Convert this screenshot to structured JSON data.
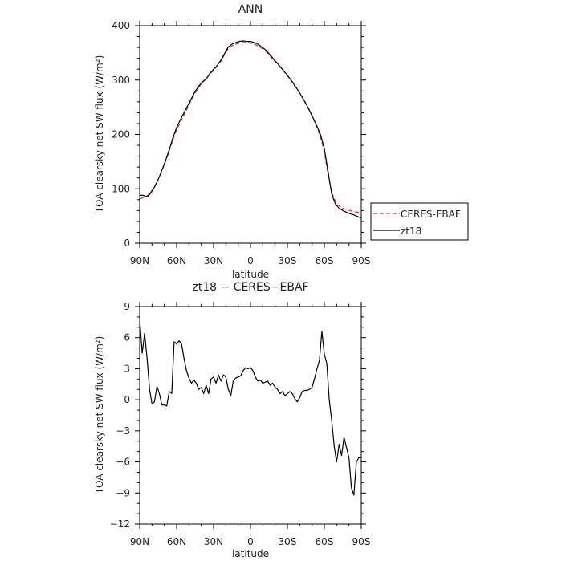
{
  "chart_data": [
    {
      "type": "line",
      "title": "ANN",
      "xlabel": "latitude",
      "ylabel": "TOA clearsky net SW flux (W/m²)",
      "x_ticks": [
        "90N",
        "60N",
        "30N",
        "0",
        "30S",
        "60S",
        "90S"
      ],
      "y_ticks": [
        "0",
        "100",
        "200",
        "300",
        "400"
      ],
      "xlim": [
        90,
        -90
      ],
      "ylim": [
        0,
        400
      ],
      "legend": "right",
      "colors": {
        "CERES-EBAF": "#d62728",
        "zt18": "#000000"
      },
      "x": [
        90,
        87,
        84,
        81,
        78,
        75,
        72,
        69,
        66,
        63,
        60,
        57,
        54,
        51,
        48,
        45,
        42,
        39,
        36,
        33,
        30,
        27,
        24,
        21,
        18,
        15,
        12,
        9,
        6,
        3,
        0,
        -3,
        -6,
        -9,
        -12,
        -15,
        -18,
        -21,
        -24,
        -27,
        -30,
        -33,
        -36,
        -39,
        -42,
        -45,
        -48,
        -51,
        -54,
        -57,
        -60,
        -63,
        -66,
        -69,
        -72,
        -75,
        -78,
        -81,
        -84,
        -87,
        -90
      ],
      "series": [
        {
          "name": "CERES-EBAF",
          "style": "dashed",
          "values": [
            81,
            84,
            87,
            94,
            104,
            117,
            133,
            150,
            170,
            190,
            208,
            222,
            236,
            250,
            263,
            276,
            287,
            296,
            302,
            311,
            318,
            326,
            335,
            347,
            358,
            363,
            366,
            368,
            369,
            369,
            368,
            366,
            363,
            359,
            354,
            347,
            339,
            332,
            324,
            316,
            308,
            299,
            289,
            279,
            268,
            256,
            243,
            229,
            213,
            194,
            168,
            127,
            93,
            77,
            68,
            64,
            62,
            60,
            58,
            57,
            56
          ]
        },
        {
          "name": "zt18",
          "style": "solid",
          "values": [
            88,
            88,
            85,
            92,
            103,
            117,
            134,
            152,
            172,
            194,
            213,
            227,
            240,
            253,
            266,
            279,
            289,
            297,
            302,
            312,
            320,
            327,
            337,
            349,
            361,
            366,
            369,
            371,
            372,
            371,
            371,
            369,
            366,
            361,
            356,
            349,
            341,
            333,
            325,
            317,
            309,
            300,
            290,
            280,
            269,
            257,
            244,
            230,
            215,
            199,
            174,
            132,
            90,
            72,
            64,
            60,
            57,
            54,
            52,
            49,
            46
          ]
        }
      ]
    },
    {
      "type": "line",
      "title": "zt18 − CERES−EBAF",
      "xlabel": "latitude",
      "ylabel": "TOA clearsky net SW flux (W/m²)",
      "x_ticks": [
        "90N",
        "60N",
        "30N",
        "0",
        "30S",
        "60S",
        "90S"
      ],
      "y_ticks": [
        "−12",
        "−9",
        "−6",
        "−3",
        "0",
        "3",
        "6",
        "9"
      ],
      "xlim": [
        90,
        -90
      ],
      "ylim": [
        -12,
        9
      ],
      "colors": {
        "zt18 - CERES-EBAF": "#000000"
      },
      "x": [
        90,
        88,
        86,
        84,
        82,
        80,
        78,
        76,
        74,
        72,
        70,
        68,
        66,
        64,
        62,
        60,
        58,
        56,
        54,
        52,
        50,
        48,
        46,
        44,
        42,
        40,
        38,
        36,
        34,
        32,
        30,
        28,
        26,
        24,
        22,
        20,
        18,
        16,
        14,
        12,
        10,
        8,
        6,
        4,
        2,
        0,
        -2,
        -4,
        -6,
        -8,
        -10,
        -12,
        -14,
        -16,
        -18,
        -20,
        -22,
        -24,
        -26,
        -28,
        -30,
        -32,
        -34,
        -36,
        -38,
        -40,
        -42,
        -44,
        -46,
        -48,
        -50,
        -52,
        -54,
        -56,
        -58,
        -60,
        -62,
        -64,
        -66,
        -68,
        -70,
        -72,
        -74,
        -76,
        -78,
        -80,
        -82,
        -84,
        -86,
        -88,
        -90
      ],
      "series": [
        {
          "name": "zt18 - CERES-EBAF",
          "values": [
            7.8,
            4.5,
            6.4,
            4.0,
            1.0,
            -0.4,
            -0.2,
            1.3,
            0.6,
            -0.5,
            -0.5,
            -0.6,
            0.8,
            0.6,
            5.6,
            5.4,
            5.7,
            5.4,
            4.0,
            2.8,
            2.1,
            1.6,
            1.9,
            1.6,
            1.0,
            1.2,
            0.6,
            1.4,
            0.6,
            2.0,
            2.2,
            1.6,
            2.4,
            1.8,
            2.4,
            2.2,
            1.0,
            0.4,
            1.8,
            2.1,
            2.2,
            2.3,
            2.8,
            3.1,
            3.0,
            3.1,
            2.8,
            2.2,
            1.8,
            1.9,
            1.6,
            1.7,
            1.8,
            1.4,
            1.6,
            1.2,
            1.0,
            0.6,
            0.8,
            0.4,
            0.6,
            0.8,
            0.6,
            0.1,
            -0.2,
            0.2,
            0.8,
            0.9,
            0.9,
            1.0,
            1.2,
            2.0,
            3.0,
            3.8,
            6.6,
            4.4,
            3.5,
            0.0,
            -2.0,
            -4.5,
            -6.0,
            -4.3,
            -5.4,
            -3.6,
            -4.6,
            -5.6,
            -8.5,
            -9.2,
            -6.0,
            -5.6,
            -5.6
          ]
        }
      ]
    }
  ]
}
